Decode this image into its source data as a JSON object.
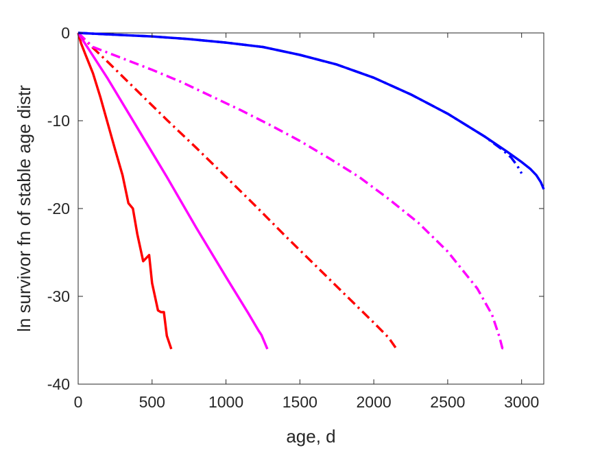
{
  "chart_data": {
    "type": "line",
    "title": "",
    "xlabel": "age, d",
    "ylabel": "ln survivor fn of stable age distr",
    "xlim": [
      0,
      3150
    ],
    "ylim": [
      -40,
      0
    ],
    "xticks": [
      0,
      500,
      1000,
      1500,
      2000,
      2500,
      3000
    ],
    "yticks": [
      0,
      -10,
      -20,
      -30,
      -40
    ],
    "grid": false,
    "legend": "none",
    "series": [
      {
        "color": "#ff0000",
        "style": "solid",
        "points": [
          [
            0,
            0
          ],
          [
            20,
            -1.2
          ],
          [
            50,
            -2.5
          ],
          [
            100,
            -4.6
          ],
          [
            150,
            -7.3
          ],
          [
            200,
            -10.3
          ],
          [
            250,
            -13.3
          ],
          [
            300,
            -16.2
          ],
          [
            340,
            -19.4
          ],
          [
            370,
            -20
          ],
          [
            400,
            -22.9
          ],
          [
            440,
            -26
          ],
          [
            480,
            -25.3
          ],
          [
            500,
            -28.5
          ],
          [
            540,
            -31.6
          ],
          [
            560,
            -31.8
          ],
          [
            580,
            -31.8
          ],
          [
            600,
            -34.5
          ],
          [
            630,
            -36
          ]
        ]
      },
      {
        "color": "#ff00ff",
        "style": "solid",
        "points": [
          [
            0,
            0
          ],
          [
            200,
            -5.2
          ],
          [
            400,
            -10.8
          ],
          [
            600,
            -16.4
          ],
          [
            800,
            -22.2
          ],
          [
            1000,
            -27.8
          ],
          [
            1150,
            -31.9
          ],
          [
            1220,
            -33.9
          ],
          [
            1240,
            -34.4
          ],
          [
            1280,
            -36
          ]
        ]
      },
      {
        "color": "#ff0000",
        "style": "dashdot",
        "points": [
          [
            0,
            0
          ],
          [
            100,
            -1.7
          ],
          [
            200,
            -3.3
          ],
          [
            400,
            -6.6
          ],
          [
            600,
            -9.9
          ],
          [
            800,
            -13.1
          ],
          [
            1000,
            -16.4
          ],
          [
            1200,
            -19.7
          ],
          [
            1400,
            -23.1
          ],
          [
            1600,
            -26.4
          ],
          [
            1800,
            -29.7
          ],
          [
            2000,
            -33
          ],
          [
            2100,
            -34.7
          ],
          [
            2150,
            -35.9
          ],
          [
            2170,
            -36
          ]
        ]
      },
      {
        "color": "#ff00ff",
        "style": "dashdot",
        "points": [
          [
            0,
            0
          ],
          [
            100,
            -1.6
          ],
          [
            300,
            -2.9
          ],
          [
            500,
            -4.2
          ],
          [
            700,
            -5.6
          ],
          [
            900,
            -7.2
          ],
          [
            1100,
            -8.8
          ],
          [
            1300,
            -10.5
          ],
          [
            1500,
            -12.3
          ],
          [
            1700,
            -14.3
          ],
          [
            1900,
            -16.4
          ],
          [
            2100,
            -18.9
          ],
          [
            2300,
            -21.6
          ],
          [
            2500,
            -24.9
          ],
          [
            2700,
            -29.1
          ],
          [
            2800,
            -32.1
          ],
          [
            2850,
            -34.6
          ],
          [
            2870,
            -35.9
          ],
          [
            2900,
            -36
          ]
        ]
      },
      {
        "color": "#0000ff",
        "style": "dashdot",
        "points": [
          [
            0,
            0
          ],
          [
            250,
            -0.2
          ],
          [
            500,
            -0.4
          ],
          [
            750,
            -0.7
          ],
          [
            1000,
            -1.1
          ],
          [
            1250,
            -1.6
          ],
          [
            1500,
            -2.5
          ],
          [
            1750,
            -3.6
          ],
          [
            2000,
            -5.1
          ],
          [
            2250,
            -7
          ],
          [
            2500,
            -9.2
          ],
          [
            2750,
            -11.8
          ],
          [
            2870,
            -13.3
          ],
          [
            2930,
            -14.2
          ],
          [
            2970,
            -15.1
          ],
          [
            3000,
            -16
          ]
        ]
      },
      {
        "color": "#0000ff",
        "style": "solid",
        "points": [
          [
            0,
            0
          ],
          [
            250,
            -0.2
          ],
          [
            500,
            -0.4
          ],
          [
            750,
            -0.7
          ],
          [
            1000,
            -1.1
          ],
          [
            1250,
            -1.6
          ],
          [
            1500,
            -2.5
          ],
          [
            1750,
            -3.6
          ],
          [
            2000,
            -5.1
          ],
          [
            2250,
            -7
          ],
          [
            2500,
            -9.2
          ],
          [
            2750,
            -11.8
          ],
          [
            2900,
            -13.5
          ],
          [
            3000,
            -14.7
          ],
          [
            3060,
            -15.5
          ],
          [
            3100,
            -16.2
          ],
          [
            3130,
            -17
          ],
          [
            3150,
            -17.8
          ]
        ]
      }
    ]
  }
}
